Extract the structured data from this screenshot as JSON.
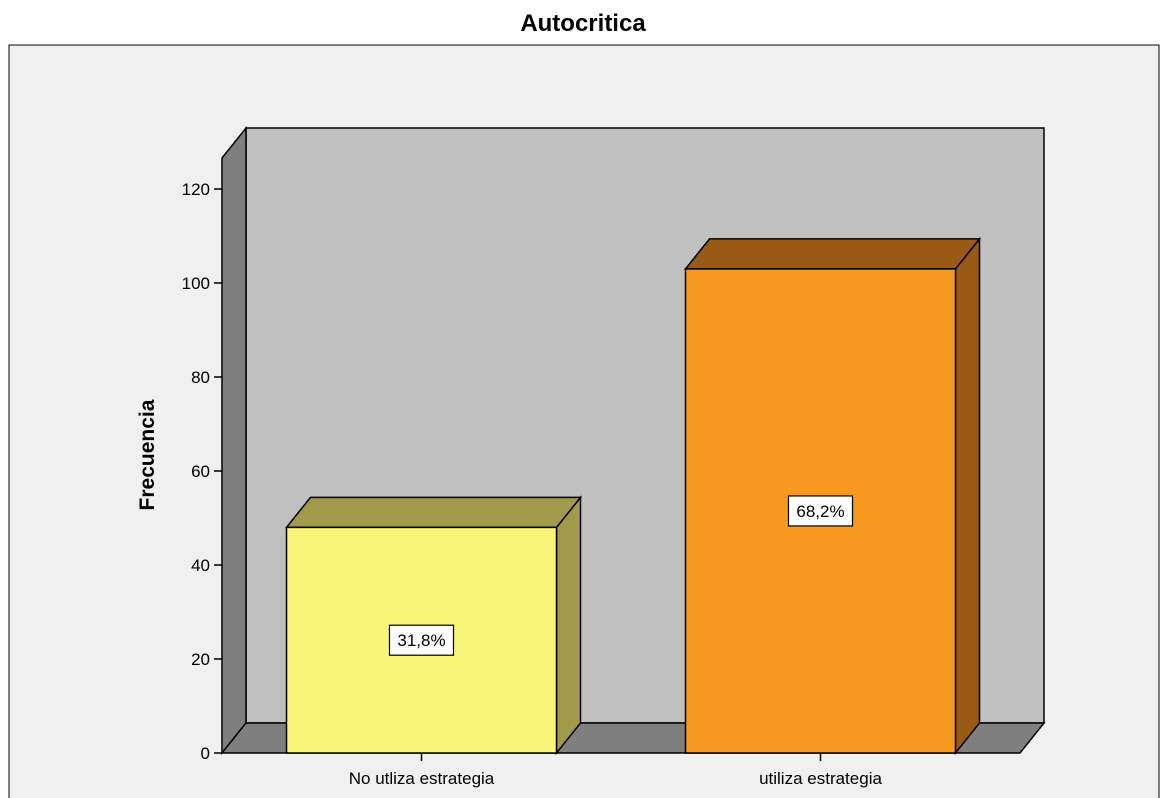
{
  "chart_data": {
    "type": "bar",
    "title": "Autocritica",
    "xlabel": "",
    "ylabel": "Frecuencia",
    "ylim": [
      0,
      130
    ],
    "yticks": [
      0,
      20,
      40,
      60,
      80,
      100,
      120
    ],
    "categories": [
      "No utliza estrategia",
      "utiliza estrategia"
    ],
    "values": [
      48,
      103
    ],
    "data_labels": [
      "31,8%",
      "68,2%"
    ],
    "grid": false,
    "legend": "none",
    "colors": {
      "bar_fronts": [
        "#f9f579",
        "#f7981f"
      ],
      "bar_tops": [
        "#a09a4a",
        "#985a14"
      ],
      "bar_sides": [
        "#a09a4a",
        "#985a14"
      ],
      "back_wall": "#c0c0c0",
      "side_wall": "#7f7f7f",
      "floor": "#7f7f7f",
      "chart_bg": "#f0f0f0",
      "label_box": "#ffffff"
    }
  }
}
